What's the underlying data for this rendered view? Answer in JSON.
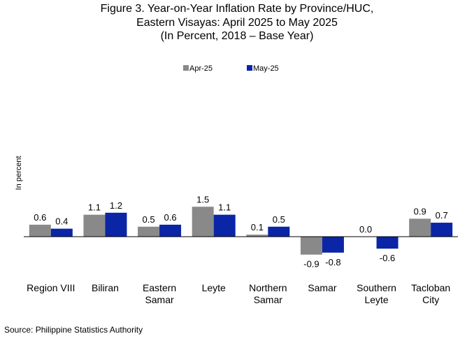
{
  "figure": {
    "title_lines": [
      "Figure 3. Year-on-Year Inflation Rate by Province/HUC,",
      "Eastern Visayas: April 2025 to May 2025",
      "(In Percent, 2018 – Base Year)"
    ],
    "source": "Source: Philippine Statistics Authority"
  },
  "colors": {
    "apr": "#898989",
    "may": "#0a25a6",
    "axis": "#000000"
  },
  "chart_data": {
    "type": "bar",
    "title": "Figure 3. Year-on-Year Inflation Rate by Province/HUC, Eastern Visayas: April 2025 to May 2025 (In Percent, 2018 – Base Year)",
    "ylabel": "In percent",
    "xlabel": "",
    "legend_position": "top-center",
    "grid": false,
    "ylim": [
      -2.2,
      2.2
    ],
    "categories": [
      [
        "Region VIII"
      ],
      [
        "Biliran"
      ],
      [
        "Eastern",
        "Samar"
      ],
      [
        "Leyte"
      ],
      [
        "Northern",
        "Samar"
      ],
      [
        "Samar"
      ],
      [
        "Southern",
        "Leyte"
      ],
      [
        "Tacloban",
        "City"
      ]
    ],
    "series": [
      {
        "name": "Apr-25",
        "values": [
          0.6,
          1.1,
          0.5,
          1.5,
          0.1,
          -0.9,
          0.0,
          0.9
        ],
        "labels": [
          "0.6",
          "1.1",
          "0.5",
          "1.5",
          "0.1",
          "-0.9",
          "0.0",
          "0.9"
        ]
      },
      {
        "name": "May-25",
        "values": [
          0.4,
          1.2,
          0.6,
          1.1,
          0.5,
          -0.8,
          -0.6,
          0.7
        ],
        "labels": [
          "0.4",
          "1.2",
          "0.6",
          "1.1",
          "0.5",
          "-0.8",
          "-0.6",
          "0.7"
        ]
      }
    ]
  }
}
